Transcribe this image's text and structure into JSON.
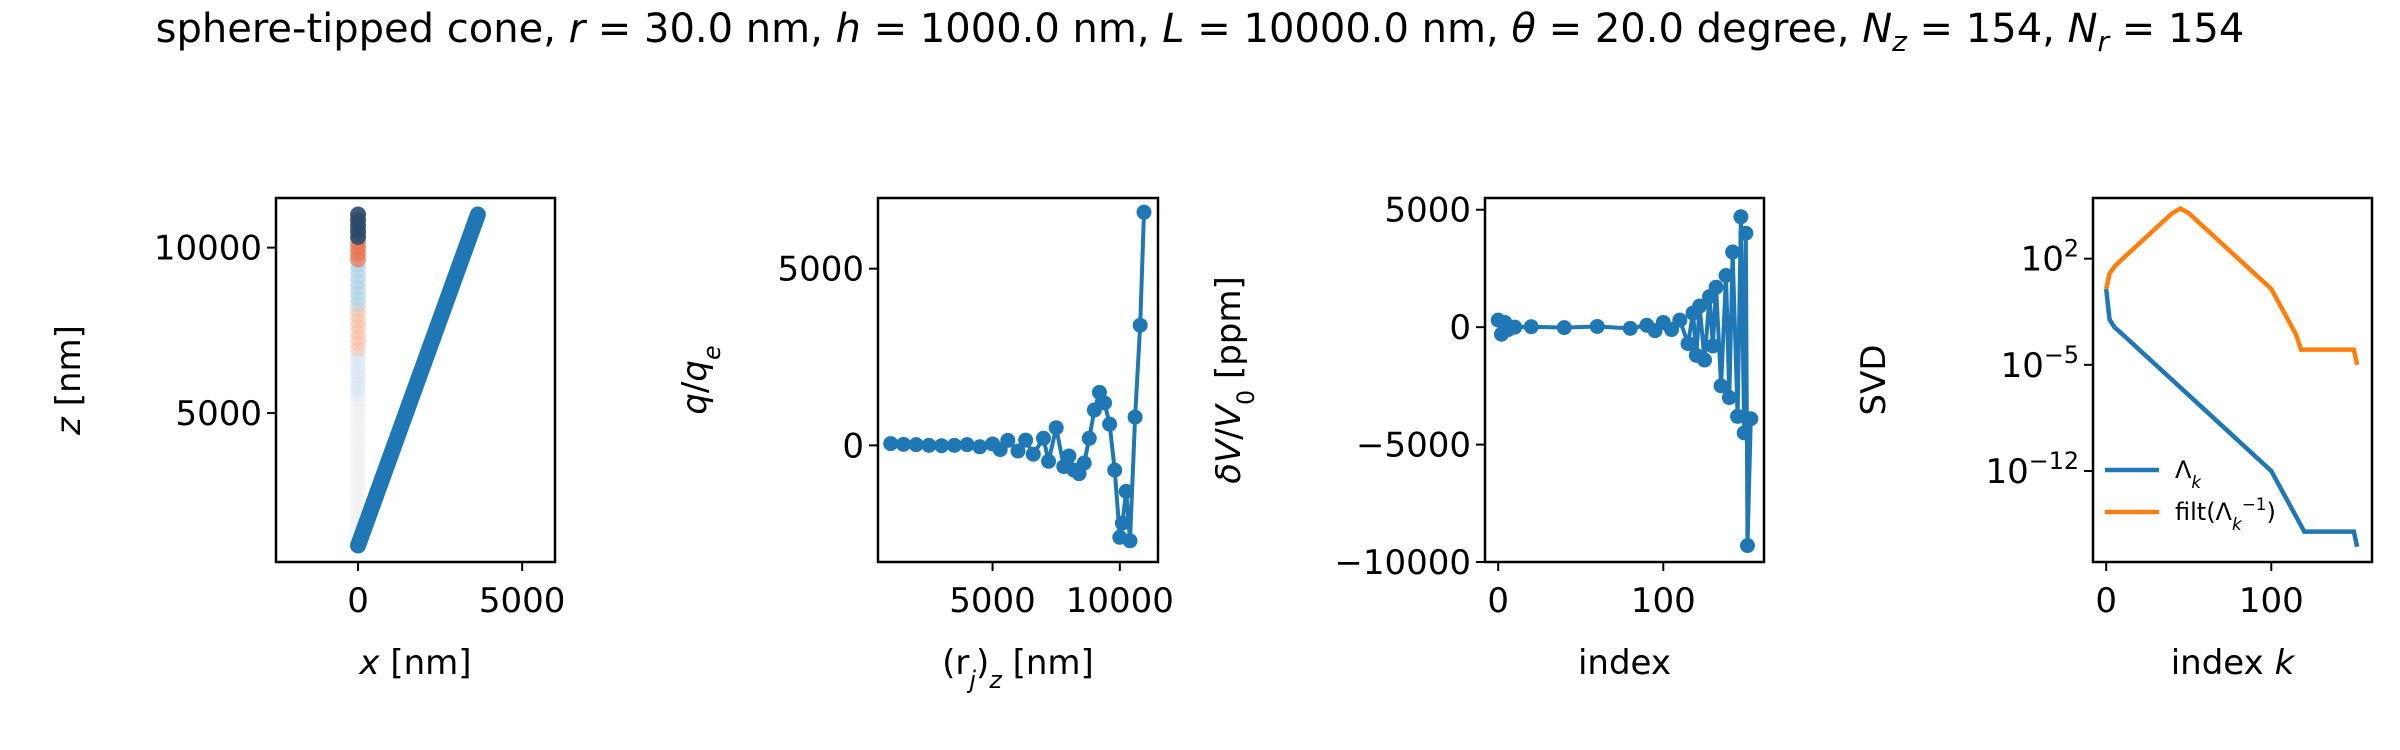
{
  "figure_title": {
    "prefix": "sphere-tipped cone, ",
    "r_sym": "r",
    "r_val": " = 30.0 nm, ",
    "h_sym": "h",
    "h_val": " = 1000.0 nm, ",
    "L_sym": "L",
    "L_val": " = 10000.0 nm, ",
    "theta_sym": "θ",
    "theta_val": " = 20.0 degree, ",
    "Nz_sym": "N",
    "Nz_sub": "z",
    "Nz_val": " = 154, ",
    "Nr_sym": "N",
    "Nr_sub": "r",
    "Nr_val": " = 154"
  },
  "colors": {
    "blue": "#1f77b4",
    "orange": "#ff7f0e",
    "red": "#e8734f",
    "navy": "#2b4a6b"
  },
  "chart_data": [
    {
      "type": "scatter",
      "xlabel": "x [nm]",
      "ylabel": "z [nm]",
      "xlim": [
        -2500,
        6000
      ],
      "ylim": [
        500,
        11500
      ],
      "xticks": [
        0,
        5000
      ],
      "yticks": [
        5000,
        10000
      ],
      "series": [
        {
          "x": [
            0,
            3650
          ],
          "y": [
            1000,
            11000
          ],
          "n": 154
        },
        {
          "x": [
            0,
            0
          ],
          "y": [
            1000,
            11000
          ],
          "colormap": "charge (RdBu)"
        }
      ]
    },
    {
      "type": "line",
      "xlabel": "(r_j)_z [nm]",
      "ylabel": "q/q_e",
      "xlim": [
        500,
        11500
      ],
      "ylim": [
        -3300,
        7000
      ],
      "xticks": [
        5000,
        10000
      ],
      "yticks": [
        0,
        5000
      ],
      "x": [
        1000,
        1500,
        2000,
        2500,
        3000,
        3500,
        4000,
        4500,
        5000,
        5300,
        5600,
        6000,
        6300,
        6600,
        7000,
        7200,
        7500,
        7800,
        8000,
        8200,
        8400,
        8600,
        8800,
        9000,
        9200,
        9400,
        9600,
        9800,
        10000,
        10100,
        10250,
        10400,
        10600,
        10800,
        10950
      ],
      "y": [
        50,
        30,
        20,
        0,
        -10,
        0,
        20,
        -40,
        40,
        -120,
        140,
        -160,
        150,
        -250,
        200,
        -450,
        500,
        -600,
        -300,
        -700,
        -800,
        -500,
        200,
        1000,
        1500,
        1200,
        600,
        -700,
        -2600,
        -2200,
        -1300,
        -2700,
        800,
        3400,
        6600
      ]
    },
    {
      "type": "line",
      "xlabel": "index",
      "ylabel": "δV/V_0 [ppm]",
      "xlim": [
        -8,
        161
      ],
      "ylim": [
        -10000,
        5500
      ],
      "xticks": [
        0,
        100
      ],
      "yticks": [
        -10000,
        -5000,
        0,
        5000
      ],
      "x": [
        0,
        2,
        4,
        6,
        10,
        20,
        40,
        60,
        80,
        90,
        95,
        100,
        105,
        110,
        115,
        118,
        120,
        122,
        125,
        128,
        130,
        132,
        135,
        138,
        140,
        142,
        145,
        147,
        149,
        150,
        151,
        153
      ],
      "y": [
        300,
        -300,
        200,
        -100,
        0,
        20,
        -20,
        30,
        -50,
        80,
        -150,
        200,
        -100,
        300,
        -700,
        600,
        -1200,
        900,
        -1400,
        1300,
        -800,
        1700,
        -2500,
        2200,
        -3000,
        3200,
        -3800,
        4700,
        -4500,
        4000,
        -9300,
        -3900
      ]
    },
    {
      "type": "line",
      "xlabel": "index k",
      "ylabel": "SVD",
      "yscale": "log",
      "xlim": [
        -8,
        161
      ],
      "ylim": [
        1e-18,
        1000000.0
      ],
      "xticks": [
        0,
        100
      ],
      "yticks": [
        1e-12,
        1e-05,
        100.0
      ],
      "legend_position": "lower-left",
      "series": [
        {
          "name": "Λ_k",
          "color": "#1f77b4",
          "x": [
            0,
            2,
            5,
            10,
            20,
            40,
            60,
            80,
            100,
            110,
            120,
            130,
            140,
            150,
            152
          ],
          "y": [
            1.0,
            0.01,
            0.003,
            0.001,
            0.0001,
            1e-06,
            1e-08,
            1e-10,
            1e-12,
            1e-14,
            1e-16,
            1e-16,
            1e-16,
            1e-16,
            1e-17
          ]
        },
        {
          "name": "filt(Λ_k^-1)",
          "color": "#ff7f0e",
          "x": [
            0,
            2,
            5,
            10,
            20,
            30,
            40,
            45,
            50,
            60,
            70,
            80,
            90,
            100,
            110,
            115,
            118,
            120,
            130,
            140,
            150,
            152
          ],
          "y": [
            1.0,
            10.0,
            30.0,
            100.0,
            1000.0,
            10000.0,
            100000.0,
            200000.0,
            100000.0,
            10000.0,
            1000.0,
            100.0,
            10.0,
            1.0,
            0.01,
            0.001,
            0.0001,
            0.0001,
            0.0001,
            0.0001,
            0.0001,
            1e-05
          ]
        }
      ]
    }
  ]
}
